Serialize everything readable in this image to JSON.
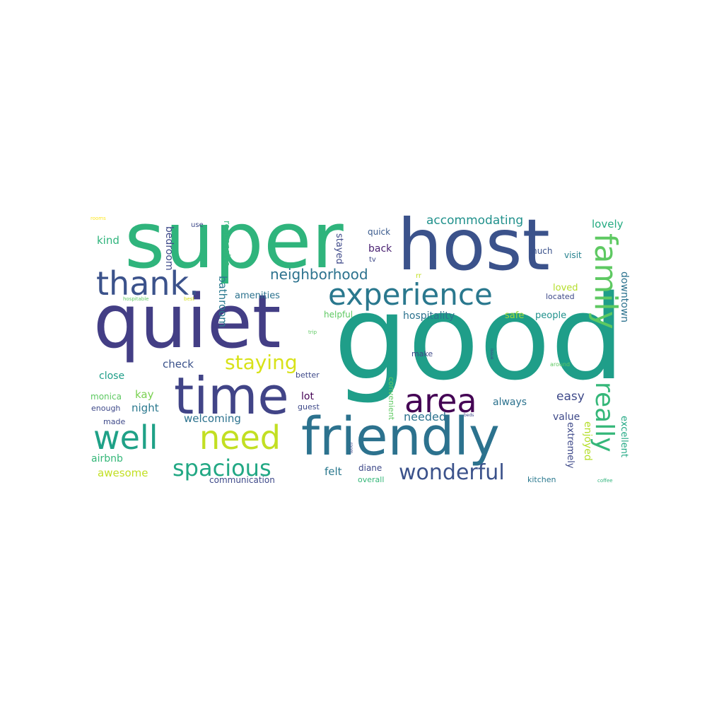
{
  "words": [
    {
      "key": "super",
      "text": "super",
      "color": "#2fb47c"
    },
    {
      "key": "host",
      "text": "host",
      "color": "#3b528b"
    },
    {
      "key": "quiet",
      "text": "quiet",
      "color": "#433e85"
    },
    {
      "key": "good",
      "text": "good",
      "color": "#1f9e89"
    },
    {
      "key": "friendly",
      "text": "friendly",
      "color": "#2c728e"
    },
    {
      "key": "time",
      "text": "time",
      "color": "#414487"
    },
    {
      "key": "thank",
      "text": "thank.",
      "color": "#3b528b"
    },
    {
      "key": "experience",
      "text": "experience",
      "color": "#2a788e"
    },
    {
      "key": "family",
      "text": "family",
      "color": "#5ec962"
    },
    {
      "key": "really",
      "text": "really",
      "color": "#35b779"
    },
    {
      "key": "well",
      "text": "well",
      "color": "#1fa187"
    },
    {
      "key": "need",
      "text": "need",
      "color": "#c2df23"
    },
    {
      "key": "area",
      "text": "area",
      "color": "#440154"
    },
    {
      "key": "spacious",
      "text": "spacious",
      "color": "#22a884"
    },
    {
      "key": "wonderful",
      "text": "wonderful",
      "color": "#3b528b"
    },
    {
      "key": "staying",
      "text": "staying",
      "color": "#d8e219"
    },
    {
      "key": "neighborhood",
      "text": "neighborhood",
      "color": "#2c728e"
    },
    {
      "key": "accommodating",
      "text": "accommodating",
      "color": "#21918c"
    },
    {
      "key": "lovely",
      "text": "lovely",
      "color": "#25ab82"
    },
    {
      "key": "kind",
      "text": "kind",
      "color": "#2fb47c"
    },
    {
      "key": "bedroom",
      "text": "bedroom",
      "color": "#3e4989"
    },
    {
      "key": "bathroom",
      "text": "bathroom",
      "color": "#2a788e"
    },
    {
      "key": "responsive",
      "text": "responsive",
      "color": "#35b779"
    },
    {
      "key": "stayed",
      "text": "stayed",
      "color": "#3e4989"
    },
    {
      "key": "quick",
      "text": "quick",
      "color": "#38598c"
    },
    {
      "key": "back",
      "text": "back",
      "color": "#481f70"
    },
    {
      "key": "tv",
      "text": "tv",
      "color": "#3e4989"
    },
    {
      "key": "much",
      "text": "much",
      "color": "#3b528b"
    },
    {
      "key": "visit",
      "text": "visit",
      "color": "#26828e"
    },
    {
      "key": "use",
      "text": "use",
      "color": "#3e4989"
    },
    {
      "key": "rooms",
      "text": "rooms",
      "color": "#fde725"
    },
    {
      "key": "amenities",
      "text": "amenities",
      "color": "#2c728e"
    },
    {
      "key": "loved",
      "text": "loved",
      "color": "#b5de2b"
    },
    {
      "key": "located",
      "text": "located",
      "color": "#3e4989"
    },
    {
      "key": "hospitality",
      "text": "hospitality",
      "color": "#2c728e"
    },
    {
      "key": "helpful",
      "text": "helpful",
      "color": "#5ec962"
    },
    {
      "key": "safe",
      "text": "safe",
      "color": "#a0da39"
    },
    {
      "key": "people",
      "text": "people",
      "color": "#21918c"
    },
    {
      "key": "downtown",
      "text": "downtown",
      "color": "#2c728e"
    },
    {
      "key": "rr",
      "text": "rr",
      "color": "#c2df23"
    },
    {
      "key": "hospitable",
      "text": "hospitable",
      "color": "#5ec962"
    },
    {
      "key": "best",
      "text": "best",
      "color": "#d8e219"
    },
    {
      "key": "close",
      "text": "close",
      "color": "#1f9e89"
    },
    {
      "key": "check",
      "text": "check",
      "color": "#3b528b"
    },
    {
      "key": "better",
      "text": "better",
      "color": "#3e4989"
    },
    {
      "key": "trip",
      "text": "trip",
      "color": "#5ec962"
    },
    {
      "key": "make",
      "text": "make",
      "color": "#3e4989"
    },
    {
      "key": "around",
      "text": "around",
      "color": "#5ec962"
    },
    {
      "key": "easy",
      "text": "easy",
      "color": "#3e4989"
    },
    {
      "key": "monica",
      "text": "monica",
      "color": "#5ec962"
    },
    {
      "key": "kay",
      "text": "kay",
      "color": "#7ad151"
    },
    {
      "key": "night",
      "text": "night",
      "color": "#2a788e"
    },
    {
      "key": "lot",
      "text": "lot",
      "color": "#440154"
    },
    {
      "key": "guest",
      "text": "guest",
      "color": "#3e4989"
    },
    {
      "key": "convenient",
      "text": "convenient",
      "color": "#5ec962"
    },
    {
      "key": "needed",
      "text": "needed",
      "color": "#2c728e"
    },
    {
      "key": "always",
      "text": "always",
      "color": "#2c728e"
    },
    {
      "key": "enough",
      "text": "enough",
      "color": "#3e4989"
    },
    {
      "key": "made",
      "text": "made",
      "color": "#3e4989"
    },
    {
      "key": "welcoming",
      "text": "welcoming",
      "color": "#2c728e"
    },
    {
      "key": "value",
      "text": "value",
      "color": "#3e4989"
    },
    {
      "key": "enjoyed",
      "text": "enjoyed",
      "color": "#b5de2b"
    },
    {
      "key": "extremely",
      "text": "extremely",
      "color": "#3e4989"
    },
    {
      "key": "excellent",
      "text": "excellent",
      "color": "#22a884"
    },
    {
      "key": "airbnb",
      "text": "airbnb",
      "color": "#35b779"
    },
    {
      "key": "awesome",
      "text": "awesome",
      "color": "#c2df23"
    },
    {
      "key": "felt",
      "text": "felt",
      "color": "#2a788e"
    },
    {
      "key": "diane",
      "text": "diane",
      "color": "#3e4989"
    },
    {
      "key": "overall",
      "text": "overall",
      "color": "#35b779"
    },
    {
      "key": "communication",
      "text": "communication",
      "color": "#3e4989"
    },
    {
      "key": "kitchen",
      "text": "kitchen",
      "color": "#2a788e"
    },
    {
      "key": "coffee",
      "text": "coffee",
      "color": "#2fb47c"
    },
    {
      "key": "beds",
      "text": "beds",
      "color": "#3e4989"
    },
    {
      "key": "room",
      "text": "room",
      "color": "#3e4989"
    },
    {
      "key": "issue",
      "text": "issue",
      "color": "#3e4989"
    }
  ]
}
